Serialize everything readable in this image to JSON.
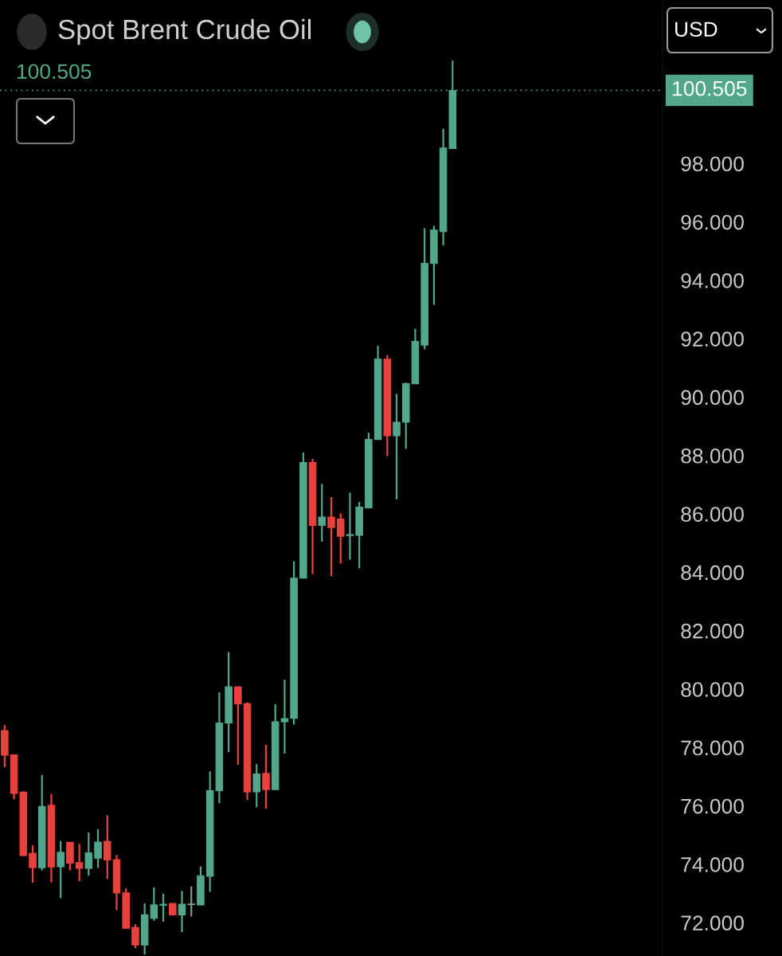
{
  "chart_data": {
    "type": "candlestick",
    "title": "Spot Brent Crude Oil",
    "annotations": [
      "100.505",
      "USD"
    ],
    "categories": [
      null,
      null,
      null,
      null,
      null,
      null,
      null,
      null,
      null,
      null,
      null,
      null,
      null,
      null,
      null,
      null,
      null,
      null,
      null,
      null,
      null,
      null,
      null,
      null,
      null,
      null,
      null,
      null,
      null,
      null,
      null,
      null,
      null,
      null,
      null,
      null,
      null,
      null,
      null,
      null,
      null,
      null,
      null,
      null,
      null,
      null,
      null,
      null,
      null,
      null,
      null,
      null,
      null,
      null,
      null,
      null,
      null,
      null,
      null,
      null,
      null,
      null,
      null,
      null,
      null,
      null,
      null,
      null,
      null,
      null,
      null
    ],
    "ohlc": [
      [
        78.58,
        78.77,
        77.33,
        77.74
      ],
      [
        77.75,
        77.77,
        76.23,
        76.43
      ],
      [
        76.47,
        76.5,
        74.28,
        74.3
      ],
      [
        74.38,
        74.65,
        73.37,
        73.89
      ],
      [
        73.88,
        77.06,
        73.79,
        75.98
      ],
      [
        76.02,
        76.41,
        73.38,
        73.91
      ],
      [
        73.92,
        74.8,
        72.84,
        74.41
      ],
      [
        74.75,
        74.75,
        73.79,
        74.04
      ],
      [
        74.06,
        74.7,
        73.42,
        73.86
      ],
      [
        73.86,
        75.09,
        73.61,
        74.39
      ],
      [
        74.21,
        75.2,
        73.88,
        74.76
      ],
      [
        74.79,
        75.68,
        73.5,
        74.15
      ],
      [
        74.16,
        74.32,
        72.43,
        73.02
      ],
      [
        73.02,
        73.18,
        71.81,
        71.81
      ],
      [
        71.84,
        71.95,
        71.13,
        71.24
      ],
      [
        71.24,
        72.66,
        70.91,
        72.27
      ],
      [
        72.15,
        73.21,
        72.07,
        72.61
      ],
      [
        72.6,
        73.0,
        72.04,
        72.63
      ],
      [
        72.66,
        72.66,
        72.27,
        72.27
      ],
      [
        72.27,
        73.09,
        71.68,
        72.63
      ],
      [
        72.62,
        73.24,
        72.22,
        72.64
      ],
      [
        72.61,
        73.93,
        72.61,
        73.61
      ],
      [
        73.59,
        77.18,
        73.06,
        76.53
      ],
      [
        76.52,
        79.89,
        76.09,
        78.84
      ],
      [
        78.84,
        81.27,
        77.84,
        80.08
      ],
      [
        80.08,
        80.08,
        77.41,
        79.5
      ],
      [
        79.5,
        79.55,
        76.2,
        76.48
      ],
      [
        76.48,
        77.43,
        75.95,
        77.09
      ],
      [
        77.11,
        78.09,
        75.91,
        76.56
      ],
      [
        76.56,
        79.48,
        76.56,
        78.88
      ],
      [
        78.88,
        80.32,
        77.79,
        78.99
      ],
      [
        79.0,
        84.38,
        78.79,
        83.8
      ],
      [
        83.8,
        88.1,
        83.8,
        87.76
      ],
      [
        87.76,
        87.89,
        83.94,
        85.61
      ],
      [
        85.61,
        87.03,
        85.05,
        85.89
      ],
      [
        85.89,
        86.58,
        83.87,
        85.53
      ],
      [
        85.82,
        86.02,
        84.3,
        85.23
      ],
      [
        85.26,
        86.73,
        84.43,
        85.29
      ],
      [
        85.27,
        86.41,
        84.14,
        86.23
      ],
      [
        86.21,
        88.78,
        86.19,
        88.55
      ],
      [
        88.55,
        91.76,
        88.55,
        91.3
      ],
      [
        91.3,
        91.44,
        87.98,
        88.68
      ],
      [
        88.68,
        90.11,
        86.5,
        89.14
      ],
      [
        89.14,
        90.5,
        88.23,
        90.46
      ],
      [
        90.46,
        92.34,
        90.45,
        91.91
      ],
      [
        91.78,
        95.78,
        91.64,
        94.58
      ],
      [
        94.58,
        95.87,
        93.16,
        95.72
      ],
      [
        95.67,
        99.19,
        95.19,
        98.53
      ],
      [
        98.51,
        101.53,
        98.5,
        100.505
      ],
      null,
      null,
      null,
      null,
      null,
      null,
      null,
      null,
      null,
      null,
      null,
      null,
      null,
      null,
      null,
      null,
      null,
      null,
      null,
      null,
      null,
      null
    ],
    "colors": [
      "#e8413e",
      "#e8413e",
      "#e8413e",
      "#e8413e",
      "#52a68c",
      "#e8413e",
      "#52a68c",
      "#e8413e",
      "#e8413e",
      "#52a68c",
      "#52a68c",
      "#e8413e",
      "#e8413e",
      "#e8413e",
      "#e8413e",
      "#52a68c",
      "#52a68c",
      "#52a68c",
      "#e8413e",
      "#52a68c",
      "#7f9a8c",
      "#52a68c",
      "#52a68c",
      "#52a68c",
      "#52a68c",
      "#e8413e",
      "#e8413e",
      "#52a68c",
      "#e8413e",
      "#52a68c",
      "#52a68c",
      "#52a68c",
      "#52a68c",
      "#e8413e",
      "#52a68c",
      "#e8413e",
      "#e8413e",
      "#52a68c",
      "#52a68c",
      "#52a68c",
      "#52a68c",
      "#e8413e",
      "#52a68c",
      "#52a68c",
      "#52a68c",
      "#52a68c",
      "#52a68c",
      "#52a68c",
      "#52a68c",
      null,
      null,
      null,
      null,
      null,
      null,
      null,
      null,
      null,
      null,
      null,
      null,
      null,
      null,
      null,
      null,
      null,
      null,
      null,
      null,
      null,
      null
    ],
    "ylim": [
      70.86,
      103.6
    ],
    "yticks": [
      {
        "value": 72,
        "label": "72.000"
      },
      {
        "value": 74,
        "label": "74.000"
      },
      {
        "value": 76,
        "label": "76.000"
      },
      {
        "value": 78,
        "label": "78.000"
      },
      {
        "value": 80,
        "label": "80.000"
      },
      {
        "value": 82,
        "label": "82.000"
      },
      {
        "value": 84,
        "label": "84.000"
      },
      {
        "value": 86,
        "label": "86.000"
      },
      {
        "value": 88,
        "label": "88.000"
      },
      {
        "value": 90,
        "label": "90.000"
      },
      {
        "value": 92,
        "label": "92.000"
      },
      {
        "value": 94,
        "label": "94.000"
      },
      {
        "value": 96,
        "label": "96.000"
      },
      {
        "value": 98,
        "label": "98.000"
      }
    ],
    "ref_lines": [
      {
        "axis": "y",
        "value": 100.505,
        "label": "100.505",
        "color": "#52a68c",
        "line_style": "dotted"
      }
    ],
    "tick_labels": "y",
    "grid": false,
    "legend": false
  }
}
